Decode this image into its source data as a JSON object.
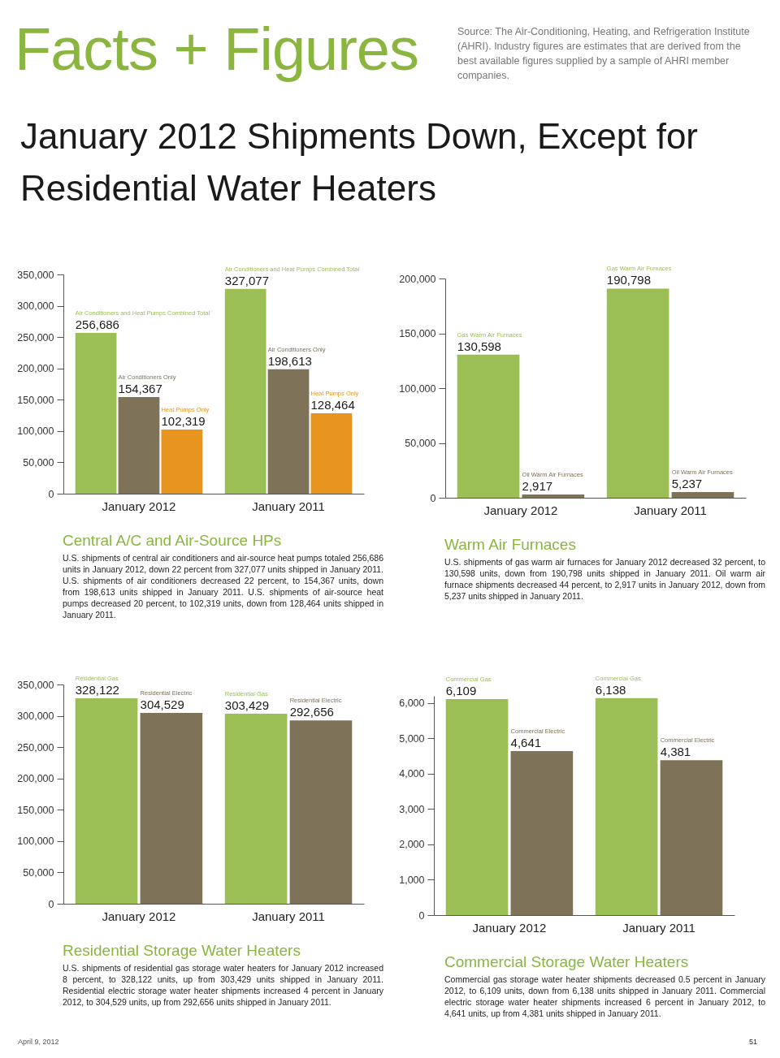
{
  "chart_data": [
    {
      "type": "other",
      "title": "Facts + Figures",
      "subtitle": "January 2012 Shipments Down, Except for Residential Water Heaters",
      "annotations": [
        "Source: The Air-Conditioning, Heating, and Refrigeration Institute (AHRI). Industry figures are estimates that are derived from the best available figures supplied by a sample of AHRI member companies.",
        "April 9, 2012",
        "51"
      ]
    },
    {
      "type": "bar",
      "title": "Central A/C and Air-Source HPs",
      "categories": [
        "January 2012",
        "January 2011"
      ],
      "series": [
        {
          "name": "Air Conditioners and Heat Pumps Combined Total",
          "color": "#9bbf55",
          "values": [
            256686,
            327077
          ],
          "value_labels": [
            "256,686",
            "327,077"
          ]
        },
        {
          "name": "Air Conditioners Only",
          "color": "#7e7258",
          "values": [
            154367,
            198613
          ],
          "value_labels": [
            "154,367",
            "198,613"
          ]
        },
        {
          "name": "Heat Pumps Only",
          "color": "#e8951f",
          "values": [
            102319,
            128464
          ],
          "value_labels": [
            "102,319",
            "128,464"
          ]
        }
      ],
      "ylim": [
        0,
        350000
      ],
      "yticks": [
        {
          "value": 0,
          "label": "0"
        },
        {
          "value": 50000,
          "label": "50,000"
        },
        {
          "value": 100000,
          "label": "100,000"
        },
        {
          "value": 150000,
          "label": "150,000"
        },
        {
          "value": 200000,
          "label": "200,000"
        },
        {
          "value": 250000,
          "label": "250,000"
        },
        {
          "value": 300000,
          "label": "300,000"
        },
        {
          "value": 350000,
          "label": "350,000"
        }
      ],
      "annotations": [
        "U.S. shipments of central air conditioners and air-source heat pumps totaled 256,686 units in January 2012, down 22 percent from 327,077 units shipped in January 2011. U.S. shipments of air conditioners decreased 22 percent, to 154,367 units, down from 198,613 units shipped in January 2011. U.S. shipments of air-source heat pumps decreased 20 percent, to 102,319 units, down from 128,464 units shipped in January 2011."
      ]
    },
    {
      "type": "bar",
      "title": "Warm Air Furnaces",
      "categories": [
        "January 2012",
        "January 2011"
      ],
      "series": [
        {
          "name": "Gas Warm Air Furnaces",
          "color": "#9bbf55",
          "values": [
            130598,
            190798
          ],
          "value_labels": [
            "130,598",
            "190,798"
          ]
        },
        {
          "name": "Oil Warm Air Furnaces",
          "color": "#7e7258",
          "values": [
            2917,
            5237
          ],
          "value_labels": [
            "2,917",
            "5,237"
          ]
        }
      ],
      "ylim": [
        0,
        200000
      ],
      "yticks": [
        {
          "value": 0,
          "label": "0"
        },
        {
          "value": 50000,
          "label": "50,000"
        },
        {
          "value": 100000,
          "label": "100,000"
        },
        {
          "value": 150000,
          "label": "150,000"
        },
        {
          "value": 200000,
          "label": "200,000"
        }
      ],
      "annotations": [
        "U.S. shipments of gas warm air furnaces for January 2012 decreased 32 percent, to 130,598 units, down from 190,798 units shipped in January 2011. Oil warm air furnace shipments decreased 44 percent, to 2,917 units in January 2012, down from 5,237 units shipped in January 2011."
      ]
    },
    {
      "type": "bar",
      "title": "Residential Storage Water Heaters",
      "categories": [
        "January 2012",
        "January 2011"
      ],
      "series": [
        {
          "name": "Residential Gas",
          "color": "#9bbf55",
          "values": [
            328122,
            303429
          ],
          "value_labels": [
            "328,122",
            "303,429"
          ]
        },
        {
          "name": "Residential Electric",
          "color": "#7e7258",
          "values": [
            304529,
            292656
          ],
          "value_labels": [
            "304,529",
            "292,656"
          ]
        }
      ],
      "ylim": [
        0,
        350000
      ],
      "yticks": [
        {
          "value": 0,
          "label": "0"
        },
        {
          "value": 50000,
          "label": "50,000"
        },
        {
          "value": 100000,
          "label": "100,000"
        },
        {
          "value": 150000,
          "label": "150,000"
        },
        {
          "value": 200000,
          "label": "200,000"
        },
        {
          "value": 250000,
          "label": "250,000"
        },
        {
          "value": 300000,
          "label": "300,000"
        },
        {
          "value": 350000,
          "label": "350,000"
        }
      ],
      "annotations": [
        "U.S. shipments of residential gas storage water heaters for January 2012 increased 8 percent, to 328,122 units, up from 303,429 units shipped in January 2011. Residential electric storage water heater shipments increased 4 percent in January 2012, to 304,529 units, up from 292,656 units shipped in January 2011."
      ]
    },
    {
      "type": "bar",
      "title": "Commercial Storage Water Heaters",
      "categories": [
        "January 2012",
        "January 2011"
      ],
      "series": [
        {
          "name": "Commercial Gas",
          "color": "#9bbf55",
          "values": [
            6109,
            6138
          ],
          "value_labels": [
            "6,109",
            "6,138"
          ]
        },
        {
          "name": "Commercial Electric",
          "color": "#7e7258",
          "values": [
            4641,
            4381
          ],
          "value_labels": [
            "4,641",
            "4,381"
          ]
        }
      ],
      "ylim": [
        0,
        6200
      ],
      "yticks": [
        {
          "value": 0,
          "label": "0"
        },
        {
          "value": 1000,
          "label": "1,000"
        },
        {
          "value": 2000,
          "label": "2,000"
        },
        {
          "value": 3000,
          "label": "3,000"
        },
        {
          "value": 4000,
          "label": "4,000"
        },
        {
          "value": 5000,
          "label": "5,000"
        },
        {
          "value": 6000,
          "label": "6,000"
        }
      ],
      "annotations": [
        "Commercial gas storage water heater shipments decreased 0.5 percent in January 2012, to 6,109 units, down from 6,138 units shipped in January 2011. Commercial electric storage water heater shipments increased 6 percent in January 2012, to 4,641 units, up from 4,381 units shipped in January 2011."
      ]
    }
  ]
}
